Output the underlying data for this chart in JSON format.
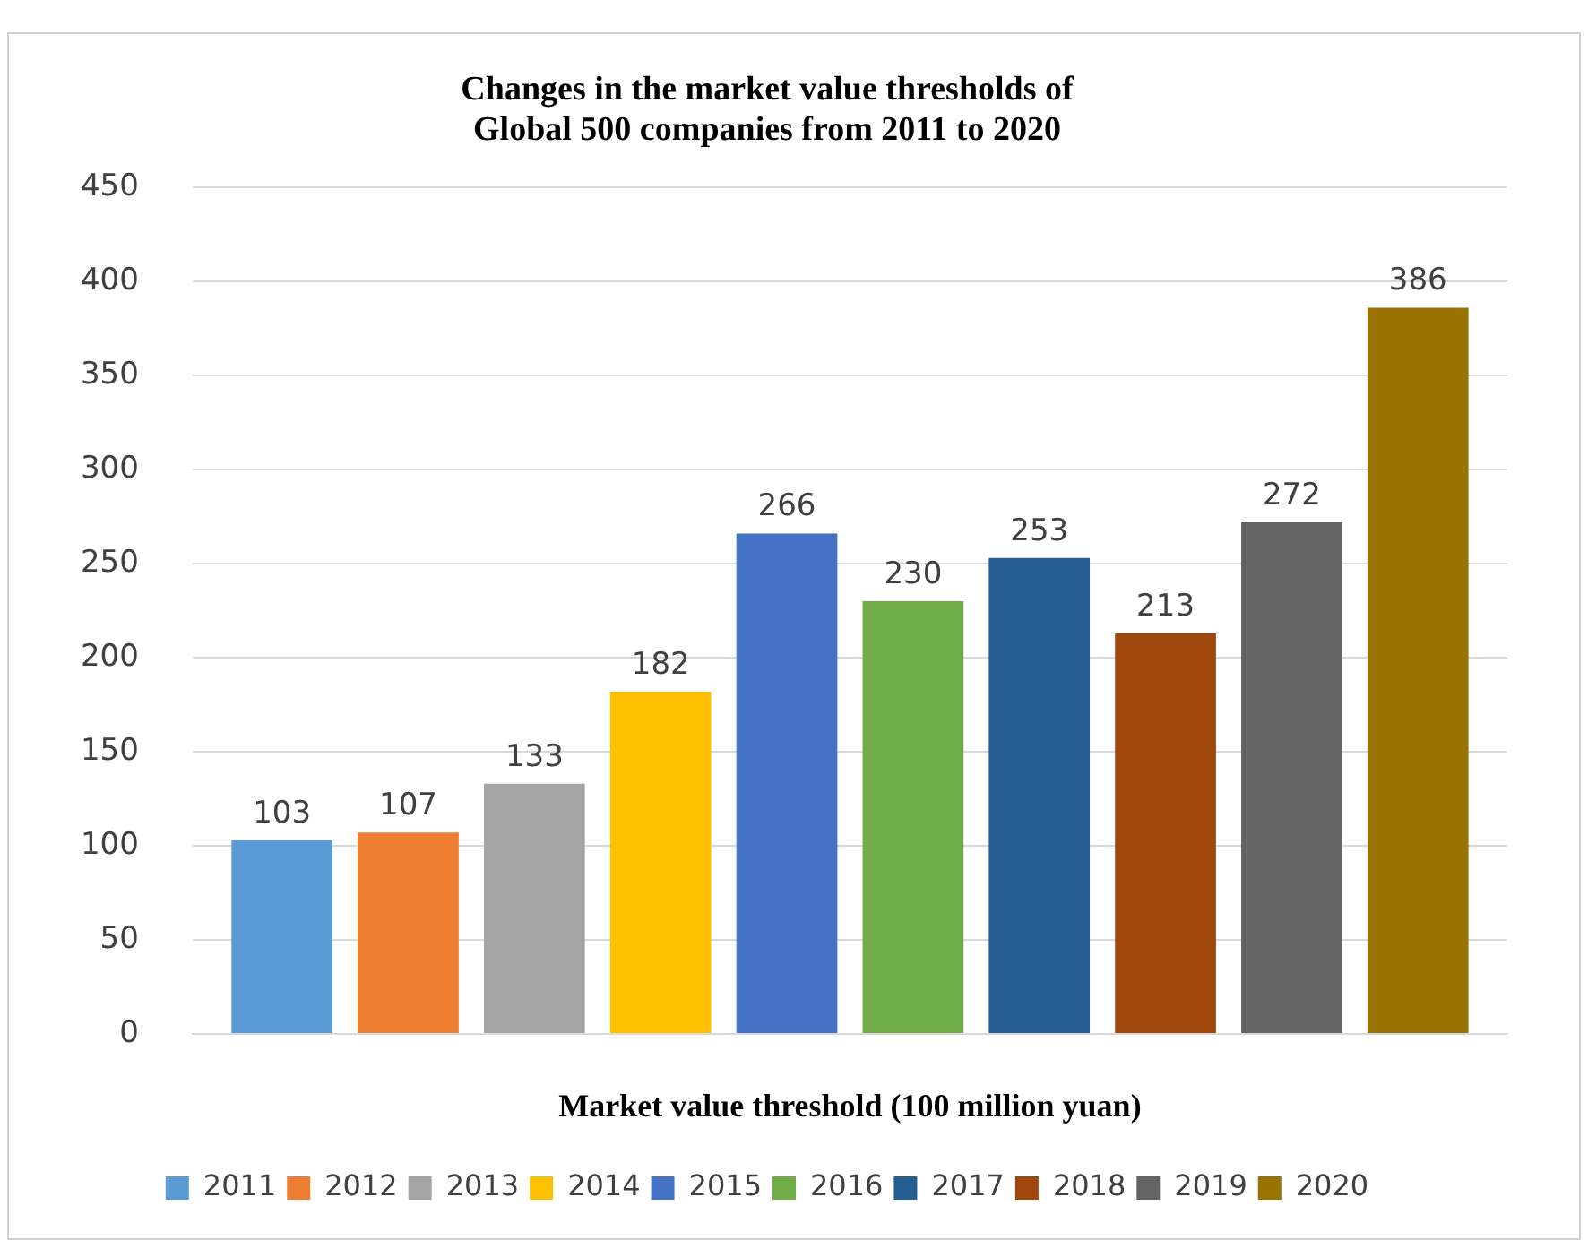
{
  "chart_data": {
    "type": "bar",
    "title": [
      "Changes in the market value thresholds of",
      "Global 500 companies from 2011 to 2020"
    ],
    "xlabel": "Market value threshold (100 million yuan)",
    "categories": [
      null
    ],
    "series": [
      {
        "name": "2011",
        "color": "#5b9bd5",
        "values": [
          103
        ]
      },
      {
        "name": "2012",
        "color": "#ed7d31",
        "values": [
          107
        ]
      },
      {
        "name": "2013",
        "color": "#a5a5a5",
        "values": [
          133
        ]
      },
      {
        "name": "2014",
        "color": "#ffc000",
        "values": [
          182
        ]
      },
      {
        "name": "2015",
        "color": "#4472c4",
        "values": [
          266
        ]
      },
      {
        "name": "2016",
        "color": "#70ad47",
        "values": [
          230
        ]
      },
      {
        "name": "2017",
        "color": "#255e91",
        "values": [
          253
        ]
      },
      {
        "name": "2018",
        "color": "#9e480e",
        "values": [
          213
        ]
      },
      {
        "name": "2019",
        "color": "#636363",
        "values": [
          272
        ]
      },
      {
        "name": "2020",
        "color": "#997300",
        "values": [
          386
        ]
      }
    ],
    "ylim": [
      0,
      450
    ],
    "yticks": [
      0,
      50,
      100,
      150,
      200,
      250,
      300,
      350,
      400,
      450
    ],
    "grid": "y",
    "legend": "bottom",
    "data_labels": true
  }
}
